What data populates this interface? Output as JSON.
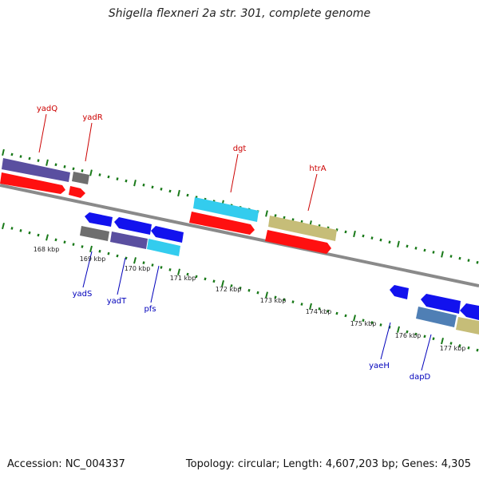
{
  "title": "Shigella flexneri 2a str. 301, complete genome",
  "footer": {
    "accession": "Accession: NC_004337",
    "summary": "Topology: circular; Length: 4,607,203 bp; Genes: 4,305"
  },
  "colors": {
    "forward_label": "#cc0000",
    "reverse_label": "#0000bb",
    "backbone": "#8a8a8a",
    "ticks": "#1a7a1a",
    "red_cds": "#ff1010",
    "blue_cds": "#1212ee",
    "purple": "#5a4fa0",
    "gray": "#6e6e6e",
    "cyan": "#33ccee",
    "khaki": "#c6bd78",
    "steel": "#4f7fb5"
  },
  "tick_labels": [
    "168 kbp",
    "169 kbp",
    "170 kbp",
    "171 kbp",
    "172 kbp",
    "173 kbp",
    "174 kbp",
    "175 kbp",
    "176 kbp",
    "177 kbp"
  ],
  "forward_genes": [
    "yadQ",
    "yadR",
    "dgt",
    "htrA"
  ],
  "reverse_genes": [
    "yadS",
    "yadT",
    "pfs",
    "yaeH",
    "dapD"
  ]
}
